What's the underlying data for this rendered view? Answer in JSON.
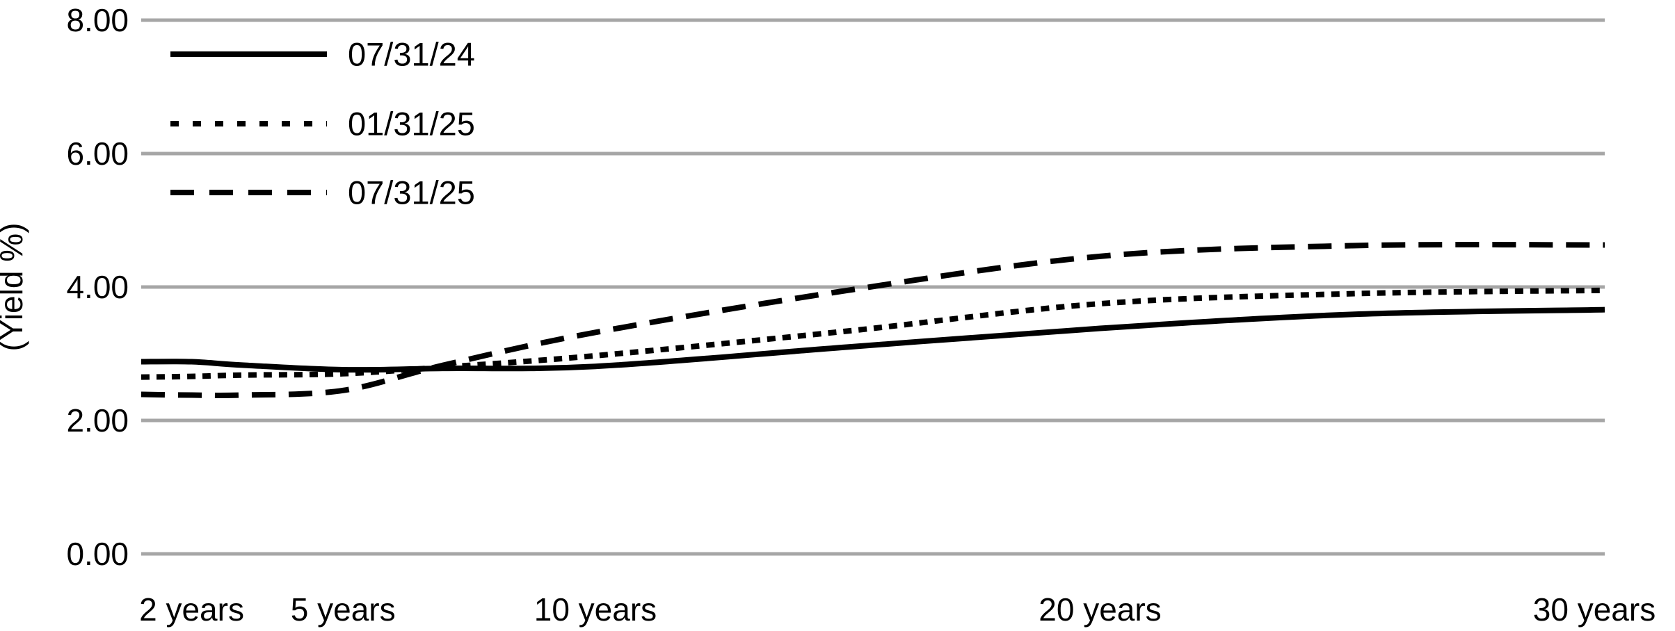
{
  "chart": {
    "y_axis_title": "(Yield %)",
    "legend": [
      {
        "label": "07/31/24",
        "style": "solid"
      },
      {
        "label": "01/31/25",
        "style": "dotted"
      },
      {
        "label": "07/31/25",
        "style": "dashed"
      }
    ]
  },
  "chart_data": {
    "type": "line",
    "title": "",
    "xlabel": "",
    "ylabel": "(Yield %)",
    "x_unit": "years",
    "x": [
      1,
      2,
      3,
      5,
      7,
      10,
      15,
      20,
      25,
      30
    ],
    "series": [
      {
        "name": "07/31/24",
        "style": "solid",
        "values": [
          2.88,
          2.88,
          2.83,
          2.76,
          2.78,
          2.81,
          3.1,
          3.38,
          3.59,
          3.66
        ]
      },
      {
        "name": "01/31/25",
        "style": "dotted",
        "values": [
          2.65,
          2.66,
          2.68,
          2.7,
          2.8,
          2.97,
          3.34,
          3.75,
          3.9,
          3.95
        ]
      },
      {
        "name": "07/31/25",
        "style": "dashed",
        "values": [
          2.39,
          2.38,
          2.38,
          2.45,
          2.83,
          3.32,
          3.95,
          4.46,
          4.62,
          4.63
        ]
      }
    ],
    "xticks": {
      "values": [
        2,
        5,
        10,
        20,
        30
      ],
      "labels": [
        "2 years",
        "5 years",
        "10 years",
        "20 years",
        "30 years"
      ]
    },
    "yticks": {
      "values": [
        8,
        6,
        4,
        2,
        0
      ],
      "labels": [
        "8.00",
        "6.00",
        "4.00",
        "2.00",
        "0.00"
      ]
    },
    "xlim": [
      1,
      30
    ],
    "ylim": [
      0,
      8
    ],
    "grid": "horizontal-only",
    "legend_position": "top-left-inside",
    "colors": {
      "line": "#000000",
      "gridline": "#A6A6A6",
      "background": "#FFFFFF",
      "text": "#000000"
    }
  }
}
